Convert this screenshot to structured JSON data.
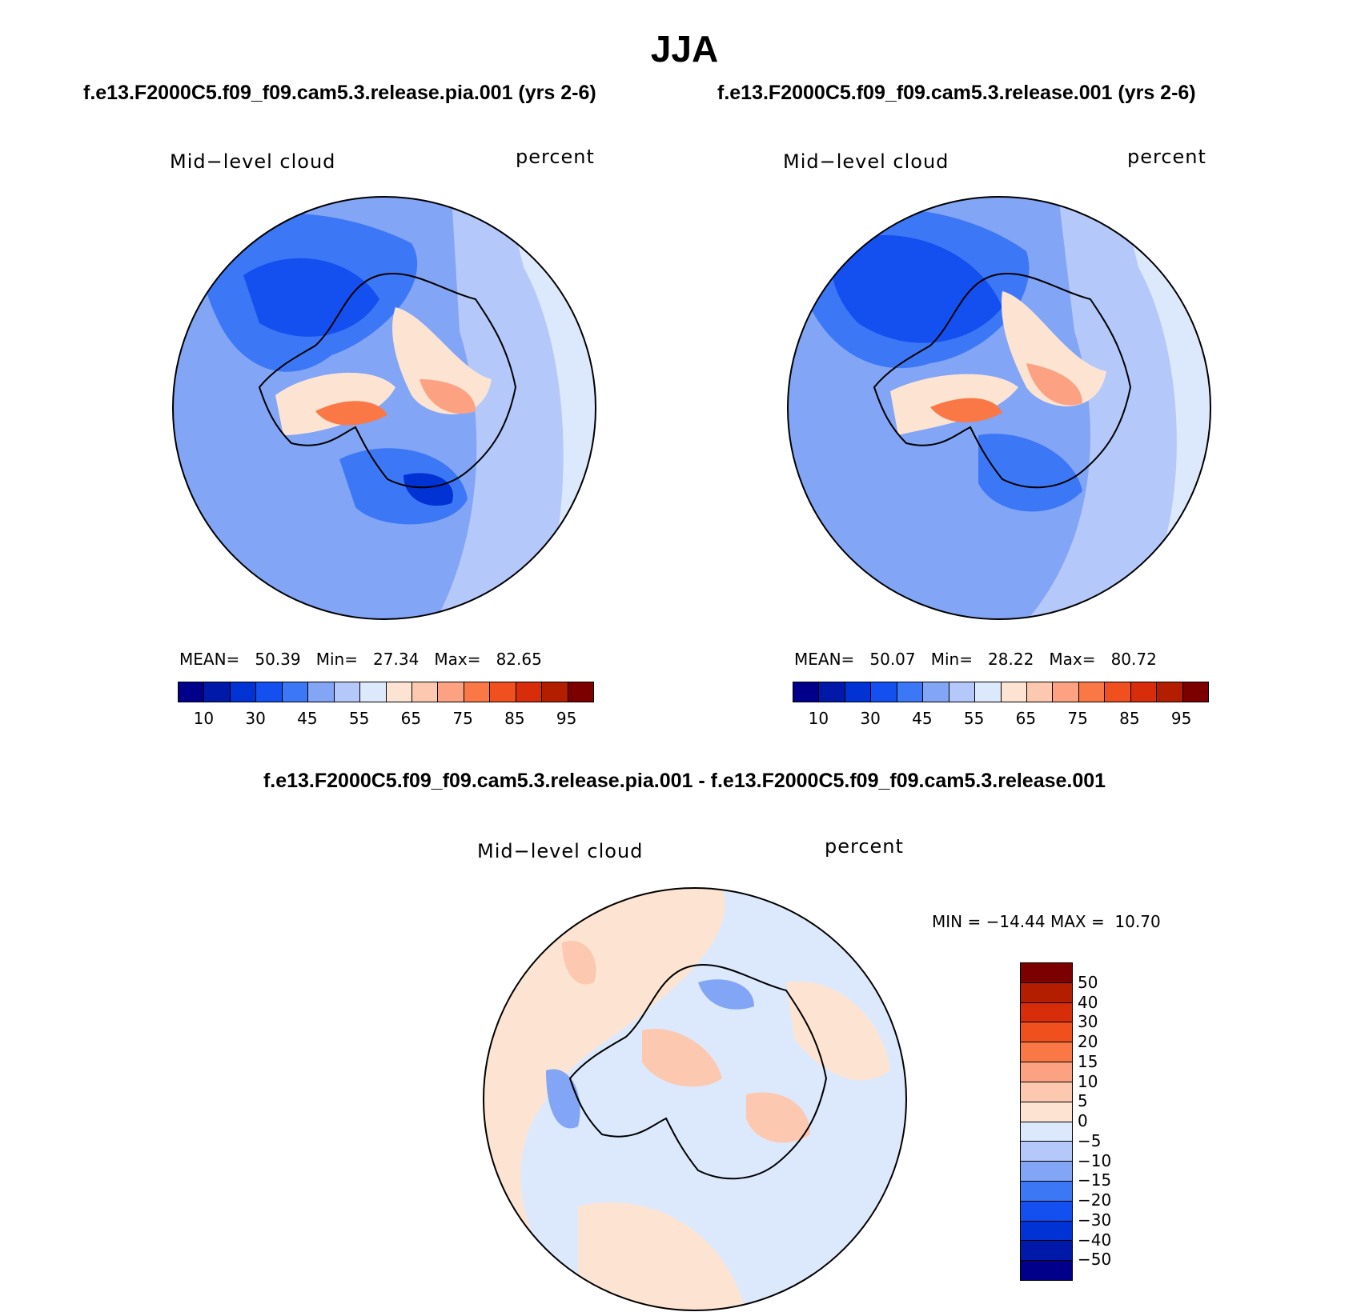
{
  "season_title": "JJA",
  "panels": [
    {
      "case_title": "f.e13.F2000C5.f09_f09.cam5.3.release.pia.001 (yrs 2-6)",
      "variable": "Mid−level cloud",
      "units": "percent",
      "stats": {
        "mean_label": "MEAN=",
        "mean": "50.39",
        "min_label": "Min=",
        "min": "27.34",
        "max_label": "Max=",
        "max": "82.65"
      }
    },
    {
      "case_title": "f.e13.F2000C5.f09_f09.cam5.3.release.001 (yrs 2-6)",
      "variable": "Mid−level cloud",
      "units": "percent",
      "stats": {
        "mean_label": "MEAN=",
        "mean": "50.07",
        "min_label": "Min=",
        "min": "28.22",
        "max_label": "Max=",
        "max": "80.72"
      }
    }
  ],
  "abs_colorbar": {
    "colors": [
      "#00008b",
      "#0019a8",
      "#0032d4",
      "#1450f0",
      "#3c78f5",
      "#82a5f5",
      "#b4c8fa",
      "#dce9fc",
      "#fde4d2",
      "#fdc8b0",
      "#fca282",
      "#fa7846",
      "#f0501e",
      "#d72d0a",
      "#b41e00",
      "#7d0000"
    ],
    "tick_labels": [
      "10",
      "30",
      "45",
      "55",
      "65",
      "75",
      "85",
      "95"
    ]
  },
  "diff_panel": {
    "title": "f.e13.F2000C5.f09_f09.cam5.3.release.pia.001 - f.e13.F2000C5.f09_f09.cam5.3.release.001",
    "variable": "Mid−level cloud",
    "units": "percent",
    "stats_text": "MIN = −14.44 MAX =  10.70"
  },
  "diff_colorbar": {
    "colors": [
      "#7d0000",
      "#b41e00",
      "#d72d0a",
      "#f0501e",
      "#fa7846",
      "#fca282",
      "#fdc8b0",
      "#fde4d2",
      "#dce9fc",
      "#b4c8fa",
      "#82a5f5",
      "#3c78f5",
      "#1450f0",
      "#0032d4",
      "#0019a8",
      "#00008b"
    ],
    "tick_labels": [
      "50",
      "40",
      "30",
      "20",
      "15",
      "10",
      "5",
      "0",
      "−5",
      "−10",
      "−15",
      "−20",
      "−30",
      "−40",
      "−50"
    ]
  },
  "palette": {
    "blue_mid": "#3c78f5",
    "blue_light": "#82a5f5",
    "blue_pale": "#b4c8fa",
    "blue_faint": "#dce9fc",
    "peach": "#fde4d2",
    "salmon": "#fdc8b0",
    "orange": "#fca282",
    "red": "#fa7846",
    "deep_blue": "#1450f0",
    "navy": "#0032d4"
  }
}
